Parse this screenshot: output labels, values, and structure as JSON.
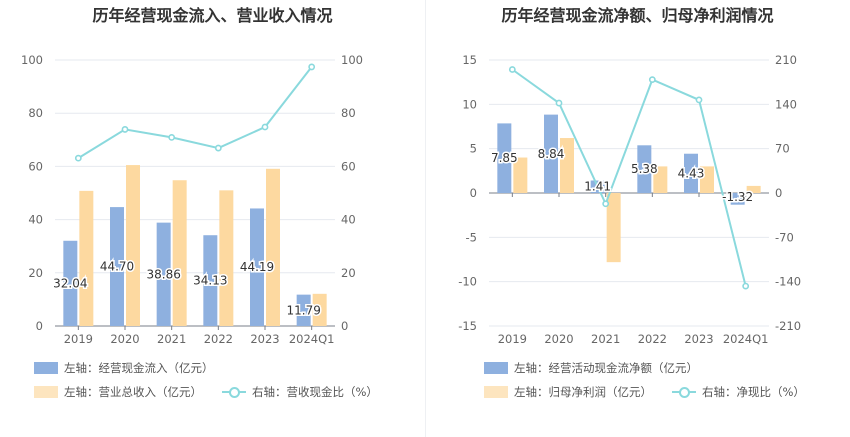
{
  "chart_data": [
    {
      "type": "bar",
      "title": "历年经营现金流入、营业收入情况",
      "categories": [
        "2019",
        "2020",
        "2021",
        "2022",
        "2023",
        "2024Q1"
      ],
      "left_axis": {
        "ylim": [
          0,
          100
        ],
        "ticks": [
          "0",
          "20",
          "40",
          "60",
          "80",
          "100"
        ]
      },
      "right_axis": {
        "ylim": [
          0,
          100
        ],
        "ticks": [
          "0",
          "20",
          "40",
          "60",
          "80",
          "100"
        ]
      },
      "series": [
        {
          "name": "左轴：经营现金流入（亿元）",
          "kind": "bar",
          "axis": "left",
          "color": "#8eb0df",
          "values": [
            32.04,
            44.7,
            38.86,
            34.13,
            44.19,
            11.79
          ],
          "labels": [
            "32.04",
            "44.70",
            "38.86",
            "34.13",
            "44.19",
            "11.79"
          ]
        },
        {
          "name": "左轴：营业总收入（亿元）",
          "kind": "bar",
          "axis": "left",
          "color": "#fdd9a0",
          "values": [
            50.8,
            60.5,
            54.8,
            51.0,
            59.1,
            12.1
          ]
        },
        {
          "name": "右轴：营收现金比（%）",
          "kind": "line",
          "axis": "right",
          "color": "#8ad9dd",
          "values": [
            63.1,
            73.9,
            70.9,
            66.9,
            74.8,
            97.4
          ]
        }
      ]
    },
    {
      "type": "bar",
      "title": "历年经营现金流净额、归母净利润情况",
      "categories": [
        "2019",
        "2020",
        "2021",
        "2022",
        "2023",
        "2024Q1"
      ],
      "left_axis": {
        "ylim": [
          -15,
          15
        ],
        "ticks": [
          "-15",
          "-10",
          "-5",
          "0",
          "5",
          "10",
          "15"
        ]
      },
      "right_axis": {
        "ylim": [
          -210,
          210
        ],
        "ticks": [
          "-210",
          "-140",
          "-70",
          "0",
          "70",
          "140",
          "210"
        ]
      },
      "series": [
        {
          "name": "左轴：经营活动现金流净额（亿元）",
          "kind": "bar",
          "axis": "left",
          "color": "#8eb0df",
          "values": [
            7.85,
            8.84,
            1.41,
            5.38,
            4.43,
            -1.32
          ],
          "labels": [
            "7.85",
            "8.84",
            "1.41",
            "5.38",
            "4.43",
            "-1.32"
          ]
        },
        {
          "name": "左轴：归母净利润（亿元）",
          "kind": "bar",
          "axis": "left",
          "color": "#fdd9a0",
          "values": [
            4.0,
            6.2,
            -7.8,
            3.0,
            3.0,
            0.8
          ]
        },
        {
          "name": "右轴：净现比（%）",
          "kind": "line",
          "axis": "right",
          "color": "#8ad9dd",
          "values": [
            195,
            142,
            -17,
            179,
            147,
            -147
          ]
        }
      ]
    }
  ]
}
